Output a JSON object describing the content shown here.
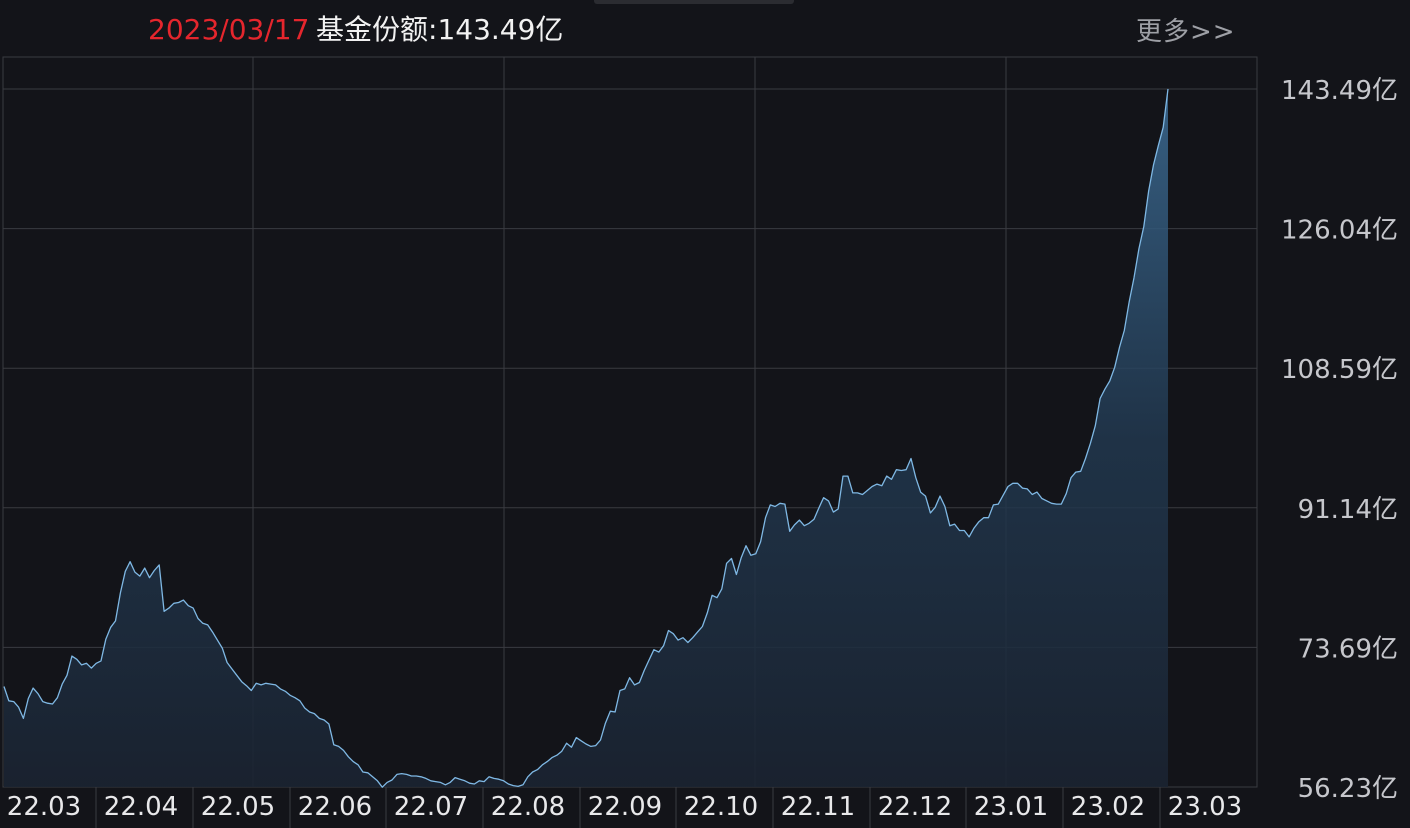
{
  "header": {
    "date": "2023/03/17",
    "share_label": "基金份额:",
    "share_value": "143.49亿",
    "more": "更多>>"
  },
  "colors": {
    "background": "#131419",
    "grid": "#3a3b41",
    "line": "#7fb8e4",
    "date_text": "#e5262d"
  },
  "chart_data": {
    "type": "area",
    "title": "",
    "xlabel": "",
    "ylabel": "",
    "unit": "亿",
    "ylim": [
      56.23,
      143.49
    ],
    "y_ticks": [
      "143.49亿",
      "126.04亿",
      "108.59亿",
      "91.14亿",
      "73.69亿",
      "56.23亿"
    ],
    "x_ticks": [
      "22.03",
      "22.04",
      "22.05",
      "22.06",
      "22.07",
      "22.08",
      "22.09",
      "22.10",
      "22.11",
      "22.12",
      "23.01",
      "23.02",
      "23.03"
    ],
    "grid": true,
    "series": [
      {
        "values": [
          68.8,
          67.0,
          66.9,
          66.2,
          64.8,
          67.3,
          68.6,
          67.9,
          66.9,
          66.7,
          66.6,
          67.4,
          69.1,
          70.2,
          72.6,
          72.2,
          71.5,
          71.7,
          71.1,
          71.7,
          72.0,
          74.7,
          76.2,
          77.0,
          80.5,
          83.2,
          84.4,
          83.1,
          82.6,
          83.6,
          82.4,
          83.3,
          84.0,
          78.2,
          78.6,
          79.2,
          79.3,
          79.6,
          78.9,
          78.6,
          77.3,
          76.7,
          76.5,
          75.6,
          74.6,
          73.6,
          71.8,
          71.0,
          70.2,
          69.4,
          68.9,
          68.3,
          69.2,
          69.0,
          69.2,
          69.1,
          69.0,
          68.5,
          68.2,
          67.7,
          67.4,
          67.0,
          66.1,
          65.6,
          65.4,
          64.8,
          64.6,
          64.1,
          61.5,
          61.3,
          60.8,
          60.0,
          59.4,
          59.0,
          58.1,
          58.0,
          57.5,
          57.0,
          56.2,
          56.8,
          57.1,
          57.8,
          57.9,
          57.8,
          57.6,
          57.6,
          57.5,
          57.3,
          57.0,
          56.9,
          56.8,
          56.5,
          56.8,
          57.4,
          57.2,
          57.0,
          56.7,
          56.6,
          57.0,
          56.9,
          57.5,
          57.3,
          57.2,
          57.0,
          56.6,
          56.4,
          56.3,
          56.5,
          57.5,
          58.1,
          58.4,
          59.0,
          59.4,
          59.9,
          60.2,
          60.7,
          61.7,
          61.2,
          62.4,
          62.0,
          61.6,
          61.3,
          61.4,
          62.1,
          64.2,
          65.7,
          65.6,
          68.3,
          68.5,
          69.9,
          69.0,
          69.3,
          70.8,
          72.1,
          73.4,
          73.1,
          73.9,
          75.8,
          75.4,
          74.6,
          74.9,
          74.3,
          74.9,
          75.6,
          76.3,
          78.0,
          80.2,
          79.9,
          81.0,
          84.2,
          84.8,
          82.8,
          84.9,
          86.4,
          85.2,
          85.4,
          86.9,
          89.9,
          91.5,
          91.3,
          91.7,
          91.6,
          88.2,
          89.0,
          89.6,
          88.9,
          89.2,
          89.7,
          91.1,
          92.4,
          92.0,
          90.6,
          91.0,
          95.1,
          95.1,
          93.0,
          93.0,
          92.8,
          93.3,
          93.8,
          94.1,
          93.9,
          95.1,
          94.7,
          95.9,
          95.8,
          95.9,
          97.3,
          94.9,
          93.1,
          92.6,
          90.5,
          91.2,
          92.6,
          91.3,
          88.9,
          89.1,
          88.3,
          88.3,
          87.5,
          88.6,
          89.4,
          89.9,
          89.9,
          91.5,
          91.6,
          92.7,
          93.8,
          94.2,
          94.2,
          93.6,
          93.5,
          92.8,
          93.1,
          92.3,
          92.0,
          91.7,
          91.6,
          91.6,
          92.9,
          94.9,
          95.6,
          95.7,
          97.3,
          99.2,
          101.4,
          104.8,
          106.0,
          107.0,
          108.7,
          111.2,
          113.3,
          116.9,
          119.9,
          123.5,
          126.3,
          130.7,
          134.0,
          136.4,
          138.7,
          143.5
        ]
      }
    ]
  }
}
